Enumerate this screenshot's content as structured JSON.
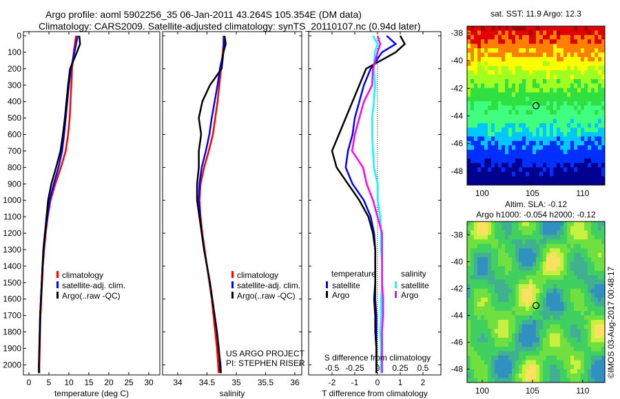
{
  "title_line1": "Argo profile: aoml 5902256_35 06-Jan-2011 43.264S 105.354E (DM data)",
  "title_line2": "Climatology: CARS2009. Satellite-adjusted climatology: synTS_20110107.nc (0.94d later)",
  "credit": "US ARGO PROJECT",
  "pi": "PI: STEPHEN RISER",
  "watermark": "©IMOS 03-Aug-2017 00:48:17",
  "colors": {
    "climatology": "#ff0000",
    "satellite": "#0000ff",
    "argo": "#000000",
    "sal_satellite": "#00ffff",
    "sal_argo": "#ff00ff"
  },
  "chart_data": [
    {
      "type": "line",
      "xlabel": "temperature (deg C)",
      "ylabel": "depth",
      "xlim": [
        -1.5,
        32
      ],
      "ylim": [
        0,
        2060
      ],
      "xticks": [
        0,
        5,
        10,
        15,
        20,
        25,
        30
      ],
      "yticks": [
        0,
        100,
        200,
        300,
        400,
        500,
        600,
        700,
        800,
        900,
        1000,
        1100,
        1200,
        1300,
        1400,
        1500,
        1600,
        1700,
        1800,
        1900,
        2000
      ],
      "legend": [
        "climatology",
        "satellite-adj. clim.",
        "Argo(..raw -QC)"
      ],
      "depth": [
        0,
        50,
        100,
        200,
        300,
        400,
        500,
        600,
        700,
        800,
        900,
        1000,
        1100,
        1200,
        1300,
        1400,
        1500,
        1600,
        1700,
        1800,
        1900,
        2000,
        2050
      ],
      "series": [
        {
          "name": "climatology",
          "values": [
            11.8,
            11.5,
            11.2,
            10.8,
            10.6,
            10.4,
            10.2,
            9.8,
            9.2,
            8.0,
            6.6,
            5.4,
            4.7,
            4.2,
            3.8,
            3.5,
            3.3,
            3.1,
            2.9,
            2.8,
            2.7,
            2.6,
            2.6
          ]
        },
        {
          "name": "satellite-adj. clim.",
          "values": [
            12.2,
            11.8,
            11.4,
            10.5,
            10.0,
            9.6,
            9.2,
            8.8,
            8.3,
            7.4,
            6.2,
            5.2,
            4.6,
            4.1,
            3.7,
            3.4,
            3.2,
            3.0,
            2.8,
            2.7,
            2.6,
            2.5,
            2.5
          ]
        },
        {
          "name": "Argo(..raw -QC)",
          "values": [
            12.6,
            12.8,
            12.0,
            10.3,
            9.8,
            9.4,
            9.0,
            8.5,
            7.9,
            6.8,
            5.6,
            4.8,
            4.4,
            4.0,
            3.6,
            3.4,
            3.2,
            3.0,
            2.8,
            2.7,
            2.6,
            2.5,
            2.5
          ]
        }
      ]
    },
    {
      "type": "line",
      "xlabel": "salinity",
      "xlim": [
        33.7,
        36.1
      ],
      "ylim": [
        0,
        2060
      ],
      "xticks": [
        34,
        34.5,
        35,
        35.5,
        36
      ],
      "legend": [
        "climatology",
        "satellite-adj. clim.",
        "Argo(..raw -QC)"
      ],
      "depth": [
        0,
        50,
        100,
        200,
        300,
        400,
        500,
        600,
        700,
        800,
        900,
        1000,
        1100,
        1200,
        1300,
        1400,
        1500,
        1600,
        1700,
        1800,
        1900,
        2000,
        2050
      ],
      "series": [
        {
          "name": "climatology",
          "values": [
            34.78,
            34.78,
            34.77,
            34.74,
            34.71,
            34.68,
            34.64,
            34.6,
            34.53,
            34.45,
            34.39,
            34.37,
            34.39,
            34.42,
            34.46,
            34.5,
            34.54,
            34.58,
            34.61,
            34.64,
            34.67,
            34.69,
            34.7
          ]
        },
        {
          "name": "satellite-adj. clim.",
          "values": [
            34.8,
            34.79,
            34.78,
            34.72,
            34.68,
            34.63,
            34.58,
            34.54,
            34.48,
            34.41,
            34.37,
            34.36,
            34.38,
            34.41,
            34.45,
            34.5,
            34.55,
            34.59,
            34.63,
            34.67,
            34.7,
            34.73,
            34.74
          ]
        },
        {
          "name": "Argo(..raw -QC)",
          "values": [
            34.8,
            34.82,
            34.78,
            34.75,
            34.55,
            34.42,
            34.36,
            34.4,
            34.36,
            34.36,
            34.33,
            34.33,
            34.37,
            34.41,
            34.45,
            34.5,
            34.55,
            34.59,
            34.63,
            34.67,
            34.7,
            34.72,
            34.73
          ]
        }
      ]
    },
    {
      "type": "line",
      "xlabel": "T difference from climatology",
      "xlabel2": "S difference from climatology",
      "xlim": [
        -3,
        3
      ],
      "ylim": [
        0,
        2060
      ],
      "xticks": [
        -2,
        -1,
        0,
        1,
        2
      ],
      "xticks2": [
        "-0.5",
        "-0.25",
        "0",
        "0.25",
        "0.5"
      ],
      "legend_title_t": "temperature",
      "legend_title_s": "salinity",
      "legend": [
        "satellite",
        "Argo",
        "satellite",
        "Argo"
      ],
      "depth": [
        0,
        50,
        100,
        200,
        300,
        400,
        500,
        600,
        700,
        800,
        900,
        1000,
        1100,
        1200,
        1300,
        1400,
        1500,
        1600,
        1700,
        1800,
        1900,
        2000,
        2050
      ],
      "series": [
        {
          "name": "T satellite",
          "values": [
            0.4,
            0.8,
            0.2,
            -0.3,
            -0.6,
            -0.8,
            -1.0,
            -1.1,
            -1.3,
            -1.4,
            -1.1,
            -0.6,
            -0.3,
            -0.15,
            -0.1,
            -0.1,
            -0.1,
            -0.1,
            -0.05,
            -0.05,
            -0.05,
            -0.05,
            -0.05
          ]
        },
        {
          "name": "T Argo",
          "values": [
            1.0,
            1.2,
            0.8,
            -0.5,
            -0.8,
            -1.1,
            -1.4,
            -1.7,
            -2.0,
            -1.8,
            -1.3,
            -0.8,
            -0.4,
            -0.2,
            -0.1,
            -0.1,
            -0.1,
            -0.15,
            -0.1,
            -0.1,
            -0.05,
            -0.05,
            -0.05
          ]
        },
        {
          "name": "S satellite",
          "values": [
            -0.05,
            0.0,
            -0.03,
            -0.04,
            -0.03,
            -0.04,
            -0.06,
            -0.06,
            -0.05,
            -0.04,
            0.0,
            0.0,
            0.03,
            0.04,
            0.04,
            0.05,
            0.05,
            0.04,
            0.04,
            0.03,
            0.04,
            0.04,
            0.04
          ]
        },
        {
          "name": "S Argo",
          "values": [
            0.0,
            0.03,
            0.0,
            -0.05,
            -0.06,
            -0.15,
            -0.2,
            -0.25,
            -0.28,
            -0.16,
            -0.12,
            -0.05,
            0.0,
            0.05,
            0.05,
            0.05,
            0.05,
            0.06,
            0.06,
            0.05,
            0.05,
            0.05,
            0.05
          ]
        }
      ]
    },
    {
      "type": "heatmap",
      "title": "sat. SST: 11.9 Argo: 12.3",
      "xticks": [
        100,
        105,
        110
      ],
      "yticks": [
        -38,
        -40,
        -42,
        -44,
        -46,
        -48
      ],
      "xlim": [
        98.5,
        112.2
      ],
      "ylim": [
        -49,
        -37.5
      ],
      "marker": [
        105.354,
        -43.264
      ]
    },
    {
      "type": "heatmap",
      "title": "Altim. SLA: -0.12",
      "title2": "Argo h1000: -0.054 h2000: -0.12",
      "xticks": [
        100,
        105,
        110
      ],
      "yticks": [
        -38,
        -40,
        -42,
        -44,
        -46,
        -48
      ],
      "xlim": [
        98.5,
        112.2
      ],
      "ylim": [
        -49,
        -37
      ],
      "marker": [
        105.354,
        -43.264
      ]
    }
  ]
}
